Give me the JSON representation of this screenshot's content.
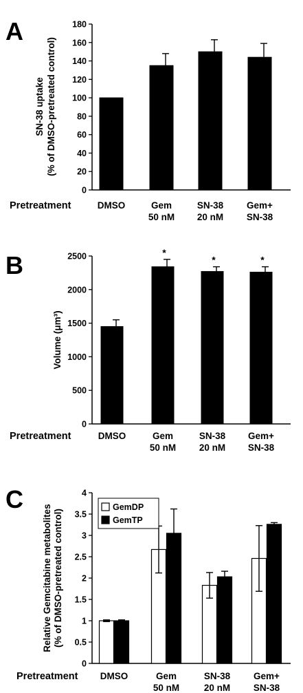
{
  "pretreatment_label": "Pretreatment",
  "chart_data": [
    {
      "panel": "A",
      "type": "bar",
      "categories": [
        [
          "DMSO"
        ],
        [
          "Gem",
          "50 nM"
        ],
        [
          "SN-38",
          "20 nM"
        ],
        [
          "Gem+",
          "SN-38"
        ]
      ],
      "values": [
        100,
        135,
        150,
        144
      ],
      "errors": [
        0,
        13,
        13,
        15
      ],
      "ylabel": [
        "SN-38 uptake",
        "(% of DMSO-pretreated control)"
      ],
      "ylim": [
        0,
        180
      ],
      "yticks": [
        "0",
        "20",
        "40",
        "60",
        "80",
        "100",
        "120",
        "140",
        "160",
        "180"
      ],
      "ytick_values": [
        0,
        20,
        40,
        60,
        80,
        100,
        120,
        140,
        160,
        180
      ],
      "xlabel": "Pretreatment",
      "colors": {
        "bar": "#000000"
      },
      "grid": false
    },
    {
      "panel": "B",
      "type": "bar",
      "categories": [
        [
          "DMSO"
        ],
        [
          "Gem",
          "50 nM"
        ],
        [
          "SN-38",
          "20 nM"
        ],
        [
          "Gem+",
          "SN-38"
        ]
      ],
      "values": [
        1450,
        2340,
        2270,
        2260
      ],
      "errors": [
        100,
        110,
        70,
        80
      ],
      "annotations": [
        "",
        "*",
        "*",
        "*"
      ],
      "ylabel": [
        "Volume (μm³)"
      ],
      "ylim": [
        0,
        2500
      ],
      "yticks": [
        "0",
        "500",
        "1000",
        "1500",
        "2000",
        "2500"
      ],
      "ytick_values": [
        0,
        500,
        1000,
        1500,
        2000,
        2500
      ],
      "xlabel": "Pretreatment",
      "colors": {
        "bar": "#000000"
      },
      "grid": false
    },
    {
      "panel": "C",
      "type": "bar",
      "categories": [
        [
          "DMSO"
        ],
        [
          "Gem",
          "50 nM"
        ],
        [
          "SN-38",
          "20 nM"
        ],
        [
          "Gem+",
          "SN-38"
        ]
      ],
      "series": [
        {
          "name": "GemDP",
          "values": [
            1.0,
            2.67,
            1.83,
            2.46
          ],
          "errors": [
            0.02,
            0.55,
            0.3,
            0.77
          ],
          "color": "#ffffff"
        },
        {
          "name": "GemTP",
          "values": [
            1.0,
            3.05,
            2.03,
            3.26
          ],
          "errors": [
            0.02,
            0.57,
            0.13,
            0.04
          ],
          "color": "#000000"
        }
      ],
      "ylabel": [
        "Relative Gemcitabine metabolites",
        "(% of DMSO-pretreated control)"
      ],
      "ylim": [
        0,
        4
      ],
      "yticks": [
        "0",
        "0.5",
        "1",
        "1.5",
        "2",
        "2.5",
        "3",
        "3.5",
        "4"
      ],
      "ytick_values": [
        0,
        0.5,
        1,
        1.5,
        2,
        2.5,
        3,
        3.5,
        4
      ],
      "xlabel": "Pretreatment",
      "legend": "top-left",
      "grid": false
    }
  ]
}
